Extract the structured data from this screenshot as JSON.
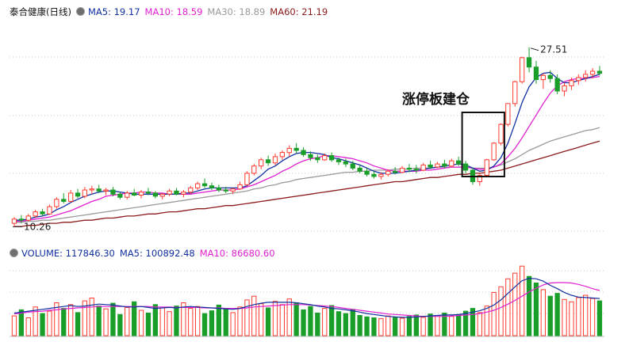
{
  "colors": {
    "up": "#ff3b30",
    "down": "#1a9e2a",
    "ma5": "#1030a0",
    "ma10": "#e020d0",
    "ma30": "#9a9a9a",
    "ma60": "#8b1a1a",
    "box": "#111111",
    "grid": "#c8c8c8"
  },
  "icons": {
    "legend": "circle-toggle-icon"
  },
  "price_panel": {
    "stock_name": "泰合健康(日线)",
    "ma5_label": "MA5: 19.17",
    "ma10_label": "MA10: 18.59",
    "ma30_label": "MA30: 18.89",
    "ma60_label": "MA60: 21.19",
    "high_label": "27.51",
    "low_label": "10.26",
    "annotation": "涨停板建仓"
  },
  "volume_panel": {
    "volume_label": "VOLUME: 117846.30",
    "ma5_label": "MA5: 100892.48",
    "ma10_label": "MA10: 86680.60"
  },
  "chart_data": [
    {
      "type": "candlestick",
      "title": "泰合健康(日线)",
      "ylim": [
        10,
        29
      ],
      "grid": true,
      "candles": [
        [
          10.6,
          11.2,
          10.3,
          11.0
        ],
        [
          11.0,
          11.4,
          10.6,
          10.9
        ],
        [
          10.9,
          11.5,
          10.8,
          11.3
        ],
        [
          11.3,
          11.9,
          11.1,
          11.7
        ],
        [
          11.7,
          12.0,
          11.3,
          11.5
        ],
        [
          11.5,
          12.4,
          11.4,
          12.2
        ],
        [
          12.2,
          13.1,
          12.0,
          12.9
        ],
        [
          12.9,
          13.5,
          12.5,
          12.7
        ],
        [
          12.7,
          13.8,
          12.6,
          13.5
        ],
        [
          13.5,
          13.9,
          13.0,
          13.2
        ],
        [
          13.2,
          14.1,
          13.0,
          13.8
        ],
        [
          13.8,
          14.2,
          13.4,
          13.9
        ],
        [
          13.9,
          14.3,
          13.5,
          13.7
        ],
        [
          13.7,
          14.0,
          13.3,
          13.8
        ],
        [
          13.8,
          14.1,
          13.2,
          13.4
        ],
        [
          13.4,
          13.6,
          12.9,
          13.1
        ],
        [
          13.1,
          13.7,
          12.9,
          13.5
        ],
        [
          13.5,
          13.9,
          13.2,
          13.3
        ],
        [
          13.3,
          13.8,
          13.0,
          13.6
        ],
        [
          13.6,
          14.0,
          13.3,
          13.5
        ],
        [
          13.5,
          13.7,
          13.0,
          13.2
        ],
        [
          13.2,
          13.5,
          12.9,
          13.4
        ],
        [
          13.4,
          13.9,
          13.2,
          13.7
        ],
        [
          13.7,
          14.0,
          13.3,
          13.4
        ],
        [
          13.4,
          13.8,
          13.1,
          13.6
        ],
        [
          13.6,
          14.2,
          13.4,
          14.0
        ],
        [
          14.0,
          14.6,
          13.8,
          14.4
        ],
        [
          14.4,
          14.9,
          14.0,
          14.2
        ],
        [
          14.2,
          14.5,
          13.8,
          14.0
        ],
        [
          14.0,
          14.3,
          13.6,
          13.8
        ],
        [
          13.8,
          14.1,
          13.5,
          13.7
        ],
        [
          13.7,
          14.0,
          13.4,
          13.9
        ],
        [
          13.9,
          14.6,
          13.8,
          14.3
        ],
        [
          14.3,
          15.6,
          14.2,
          15.4
        ],
        [
          15.4,
          16.3,
          15.2,
          16.1
        ],
        [
          16.1,
          16.9,
          15.8,
          16.7
        ],
        [
          16.7,
          17.1,
          16.1,
          16.4
        ],
        [
          16.4,
          17.3,
          16.2,
          17.0
        ],
        [
          17.0,
          17.6,
          16.7,
          17.4
        ],
        [
          17.4,
          18.1,
          17.0,
          17.8
        ],
        [
          17.8,
          18.3,
          17.3,
          17.6
        ],
        [
          17.6,
          17.9,
          17.0,
          17.2
        ],
        [
          17.2,
          17.5,
          16.6,
          16.9
        ],
        [
          16.9,
          17.2,
          16.4,
          16.7
        ],
        [
          16.7,
          17.3,
          16.6,
          17.1
        ],
        [
          17.1,
          17.4,
          16.5,
          16.7
        ],
        [
          16.7,
          16.9,
          16.2,
          16.5
        ],
        [
          16.5,
          16.8,
          16.0,
          16.3
        ],
        [
          16.3,
          16.6,
          15.7,
          15.9
        ],
        [
          15.9,
          16.2,
          15.4,
          15.6
        ],
        [
          15.6,
          15.9,
          15.1,
          15.3
        ],
        [
          15.3,
          15.6,
          14.9,
          15.1
        ],
        [
          15.1,
          15.5,
          14.8,
          15.3
        ],
        [
          15.3,
          15.8,
          15.1,
          15.6
        ],
        [
          15.6,
          16.0,
          15.3,
          15.5
        ],
        [
          15.5,
          16.1,
          15.4,
          15.9
        ],
        [
          15.9,
          16.3,
          15.5,
          15.8
        ],
        [
          15.8,
          16.2,
          15.4,
          15.7
        ],
        [
          15.7,
          16.4,
          15.6,
          16.2
        ],
        [
          16.2,
          16.6,
          15.8,
          16.0
        ],
        [
          16.0,
          16.5,
          15.9,
          16.3
        ],
        [
          16.3,
          16.7,
          15.9,
          16.1
        ],
        [
          16.1,
          16.8,
          16.0,
          16.6
        ],
        [
          16.6,
          17.0,
          16.1,
          16.3
        ],
        [
          16.3,
          16.6,
          15.4,
          15.7
        ],
        [
          15.7,
          15.9,
          14.3,
          14.6
        ],
        [
          14.6,
          15.4,
          14.2,
          15.2
        ],
        [
          15.2,
          16.8,
          15.1,
          16.7
        ],
        [
          16.7,
          18.4,
          16.6,
          18.3
        ],
        [
          18.3,
          20.2,
          18.1,
          20.1
        ],
        [
          20.1,
          22.1,
          19.9,
          22.1
        ],
        [
          22.1,
          24.3,
          21.8,
          24.2
        ],
        [
          24.2,
          26.6,
          24.0,
          26.5
        ],
        [
          26.5,
          27.5,
          25.1,
          25.6
        ],
        [
          25.6,
          26.2,
          24.0,
          24.4
        ],
        [
          24.4,
          25.0,
          23.5,
          24.8
        ],
        [
          24.8,
          25.3,
          24.1,
          24.5
        ],
        [
          24.5,
          24.9,
          23.0,
          23.3
        ],
        [
          23.3,
          24.1,
          22.8,
          23.8
        ],
        [
          23.8,
          24.6,
          23.4,
          24.3
        ],
        [
          24.3,
          24.9,
          23.9,
          24.6
        ],
        [
          24.6,
          25.3,
          24.2,
          24.9
        ],
        [
          24.9,
          25.5,
          24.5,
          25.2
        ],
        [
          25.2,
          25.7,
          24.8,
          25.0
        ]
      ],
      "ma5": [
        10.9,
        10.9,
        11.0,
        11.2,
        11.3,
        11.5,
        11.9,
        12.2,
        12.6,
        12.9,
        13.2,
        13.4,
        13.6,
        13.7,
        13.7,
        13.6,
        13.5,
        13.4,
        13.4,
        13.4,
        13.4,
        13.4,
        13.4,
        13.4,
        13.5,
        13.5,
        13.7,
        13.9,
        14.0,
        14.0,
        14.0,
        14.0,
        14.0,
        14.2,
        14.7,
        15.2,
        15.8,
        16.1,
        16.6,
        17.0,
        17.3,
        17.4,
        17.4,
        17.3,
        17.2,
        16.9,
        16.8,
        16.6,
        16.4,
        16.2,
        15.9,
        15.6,
        15.4,
        15.4,
        15.4,
        15.5,
        15.6,
        15.7,
        15.8,
        15.9,
        16.0,
        16.1,
        16.2,
        16.3,
        16.2,
        15.9,
        15.6,
        15.7,
        16.1,
        16.9,
        18.3,
        20.2,
        22.2,
        23.7,
        24.6,
        25.0,
        25.1,
        24.5,
        24.1,
        24.1,
        24.3,
        24.5,
        24.7,
        24.9
      ],
      "ma10": [
        10.8,
        10.8,
        10.9,
        11.0,
        11.1,
        11.2,
        11.4,
        11.6,
        11.8,
        12.1,
        12.4,
        12.7,
        12.9,
        13.2,
        13.3,
        13.4,
        13.5,
        13.5,
        13.6,
        13.6,
        13.5,
        13.5,
        13.4,
        13.4,
        13.4,
        13.4,
        13.5,
        13.6,
        13.7,
        13.8,
        13.8,
        13.8,
        13.9,
        14.1,
        14.3,
        14.6,
        14.9,
        15.2,
        15.6,
        15.9,
        16.3,
        16.6,
        16.8,
        16.9,
        17.1,
        17.1,
        17.0,
        16.9,
        16.8,
        16.6,
        16.4,
        16.1,
        15.9,
        15.7,
        15.6,
        15.6,
        15.6,
        15.6,
        15.7,
        15.7,
        15.8,
        15.9,
        16.0,
        16.0,
        16.0,
        15.9,
        15.8,
        15.8,
        16.0,
        16.3,
        17.0,
        17.8,
        18.8,
        19.9,
        21.0,
        22.1,
        23.1,
        23.8,
        24.2,
        24.4,
        24.5,
        24.5,
        24.6,
        24.7
      ],
      "ma30": [
        10.7,
        10.7,
        10.8,
        10.8,
        10.9,
        10.9,
        11.0,
        11.1,
        11.2,
        11.3,
        11.4,
        11.5,
        11.6,
        11.7,
        11.8,
        11.9,
        12.0,
        12.1,
        12.2,
        12.3,
        12.4,
        12.5,
        12.6,
        12.7,
        12.8,
        12.9,
        13.0,
        13.1,
        13.2,
        13.3,
        13.4,
        13.5,
        13.6,
        13.7,
        13.9,
        14.0,
        14.2,
        14.3,
        14.5,
        14.6,
        14.8,
        14.9,
        15.0,
        15.1,
        15.2,
        15.3,
        15.4,
        15.5,
        15.5,
        15.6,
        15.6,
        15.7,
        15.7,
        15.7,
        15.8,
        15.8,
        15.8,
        15.9,
        15.9,
        15.9,
        16.0,
        16.0,
        16.0,
        16.0,
        16.0,
        15.9,
        15.9,
        15.9,
        16.0,
        16.2,
        16.5,
        16.8,
        17.2,
        17.6,
        17.9,
        18.2,
        18.5,
        18.7,
        18.9,
        19.1,
        19.3,
        19.5,
        19.6,
        19.8
      ],
      "ma60": [
        10.3,
        10.3,
        10.4,
        10.4,
        10.5,
        10.6,
        10.6,
        10.7,
        10.7,
        10.8,
        10.9,
        10.9,
        11.0,
        11.1,
        11.1,
        11.2,
        11.3,
        11.3,
        11.4,
        11.5,
        11.5,
        11.6,
        11.7,
        11.7,
        11.8,
        11.9,
        12.0,
        12.0,
        12.1,
        12.2,
        12.3,
        12.3,
        12.4,
        12.5,
        12.6,
        12.7,
        12.8,
        12.9,
        13.0,
        13.1,
        13.2,
        13.3,
        13.4,
        13.5,
        13.6,
        13.7,
        13.8,
        13.9,
        14.0,
        14.1,
        14.2,
        14.3,
        14.4,
        14.5,
        14.6,
        14.6,
        14.7,
        14.8,
        14.9,
        15.0,
        15.0,
        15.1,
        15.2,
        15.3,
        15.3,
        15.4,
        15.4,
        15.5,
        15.6,
        15.7,
        15.9,
        16.1,
        16.3,
        16.5,
        16.7,
        16.9,
        17.1,
        17.3,
        17.5,
        17.7,
        17.9,
        18.1,
        18.3,
        18.5
      ],
      "annotations": [
        {
          "text": "27.51",
          "value": 27.51
        },
        {
          "text": "10.26",
          "value": 10.26
        },
        {
          "text": "涨停板建仓"
        }
      ]
    },
    {
      "type": "bar",
      "title": "VOLUME",
      "values": [
        42,
        55,
        38,
        61,
        47,
        52,
        70,
        58,
        66,
        49,
        74,
        80,
        63,
        57,
        69,
        45,
        60,
        72,
        54,
        48,
        66,
        59,
        51,
        63,
        70,
        58,
        62,
        47,
        53,
        65,
        57,
        49,
        61,
        76,
        84,
        68,
        59,
        73,
        66,
        78,
        70,
        55,
        62,
        48,
        58,
        64,
        51,
        47,
        56,
        43,
        40,
        38,
        36,
        42,
        39,
        37,
        41,
        44,
        39,
        46,
        43,
        48,
        41,
        45,
        52,
        58,
        49,
        63,
        92,
        104,
        121,
        133,
        148,
        126,
        112,
        98,
        84,
        90,
        77,
        72,
        81,
        86,
        79,
        74
      ],
      "ma5": [
        48,
        50,
        52,
        54,
        56,
        58,
        60,
        62,
        64,
        62,
        63,
        65,
        67,
        66,
        65,
        63,
        61,
        61,
        62,
        60,
        58,
        59,
        60,
        59,
        61,
        62,
        61,
        60,
        59,
        58,
        57,
        56,
        58,
        62,
        66,
        69,
        71,
        71,
        71,
        71,
        70,
        68,
        66,
        63,
        61,
        58,
        57,
        55,
        53,
        50,
        47,
        45,
        43,
        41,
        40,
        39,
        39,
        40,
        41,
        42,
        43,
        44,
        44,
        45,
        47,
        50,
        53,
        58,
        65,
        76,
        90,
        104,
        117,
        122,
        121,
        116,
        107,
        100,
        92,
        86,
        82,
        81,
        80,
        79
      ],
      "ma10": [
        46,
        48,
        50,
        51,
        52,
        54,
        55,
        57,
        58,
        59,
        60,
        61,
        62,
        62,
        62,
        62,
        62,
        62,
        62,
        62,
        61,
        61,
        61,
        60,
        60,
        60,
        60,
        59,
        59,
        59,
        58,
        58,
        58,
        59,
        61,
        62,
        63,
        64,
        65,
        66,
        66,
        66,
        65,
        64,
        63,
        62,
        60,
        58,
        56,
        54,
        52,
        50,
        48,
        46,
        45,
        44,
        43,
        42,
        41,
        41,
        41,
        41,
        42,
        43,
        44,
        45,
        47,
        50,
        54,
        60,
        67,
        75,
        84,
        93,
        101,
        108,
        112,
        113,
        113,
        112,
        109,
        105,
        100,
        96
      ]
    }
  ]
}
